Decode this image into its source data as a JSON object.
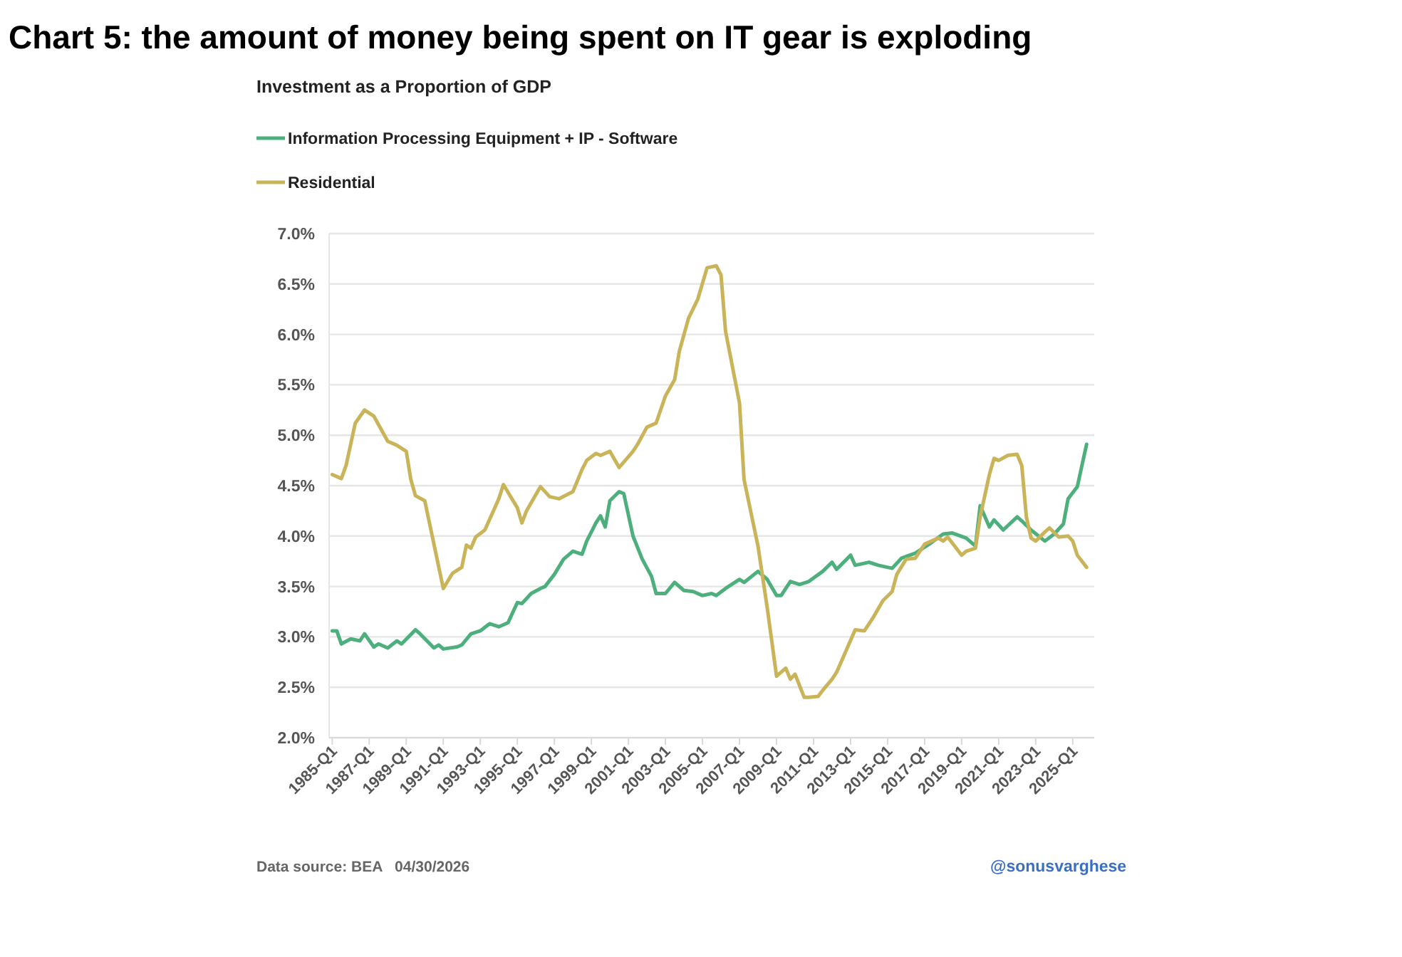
{
  "chart_data": {
    "type": "line",
    "title": "Chart 5: the amount of money being spent on IT gear is exploding",
    "subtitle": "Investment as a Proportion of GDP",
    "xlim": [
      "1984-11",
      "2026-03"
    ],
    "xticks": [
      {
        "value": "1985-01",
        "label": "1985-Q1"
      },
      {
        "value": "1987-01",
        "label": "1987-Q1"
      },
      {
        "value": "1989-01",
        "label": "1989-Q1"
      },
      {
        "value": "1991-01",
        "label": "1991-Q1"
      },
      {
        "value": "1993-01",
        "label": "1993-Q1"
      },
      {
        "value": "1995-01",
        "label": "1995-Q1"
      },
      {
        "value": "1997-01",
        "label": "1997-Q1"
      },
      {
        "value": "1999-01",
        "label": "1999-Q1"
      },
      {
        "value": "2001-01",
        "label": "2001-Q1"
      },
      {
        "value": "2003-01",
        "label": "2003-Q1"
      },
      {
        "value": "2005-01",
        "label": "2005-Q1"
      },
      {
        "value": "2007-01",
        "label": "2007-Q1"
      },
      {
        "value": "2009-01",
        "label": "2009-Q1"
      },
      {
        "value": "2011-01",
        "label": "2011-Q1"
      },
      {
        "value": "2013-01",
        "label": "2013-Q1"
      },
      {
        "value": "2015-01",
        "label": "2015-Q1"
      },
      {
        "value": "2017-01",
        "label": "2017-Q1"
      },
      {
        "value": "2019-01",
        "label": "2019-Q1"
      },
      {
        "value": "2021-01",
        "label": "2021-Q1"
      },
      {
        "value": "2023-01",
        "label": "2023-Q1"
      },
      {
        "value": "2025-01",
        "label": "2025-Q1"
      }
    ],
    "ylim": [
      2,
      7
    ],
    "yticks": [
      {
        "value": 2,
        "label": "2.0%"
      },
      {
        "value": 2.5,
        "label": "2.5%"
      },
      {
        "value": 3,
        "label": "3.0%"
      },
      {
        "value": 3.5,
        "label": "3.5%"
      },
      {
        "value": 4,
        "label": "4.0%"
      },
      {
        "value": 4.5,
        "label": "4.5%"
      },
      {
        "value": 5,
        "label": "5.0%"
      },
      {
        "value": 5.5,
        "label": "5.5%"
      },
      {
        "value": 6,
        "label": "6.0%"
      },
      {
        "value": 6.5,
        "label": "6.5%"
      },
      {
        "value": 7,
        "label": "7.0%"
      }
    ],
    "grid": "y",
    "legend": "top left",
    "series": [
      {
        "name": "Information Processing Equipment + IP - Software",
        "color": "#4daf7c",
        "x": [
          "1985-01",
          "1985-04",
          "1985-07",
          "1986-01",
          "1986-07",
          "1986-10",
          "1987-04",
          "1987-07",
          "1988-01",
          "1988-07",
          "1988-10",
          "1989-07",
          "1989-10",
          "1990-07",
          "1990-10",
          "1991-01",
          "1991-10",
          "1992-01",
          "1992-07",
          "1993-01",
          "1993-07",
          "1994-01",
          "1994-07",
          "1995-01",
          "1995-04",
          "1995-10",
          "1996-04",
          "1996-07",
          "1997-01",
          "1997-07",
          "1998-01",
          "1998-07",
          "1998-10",
          "1999-04",
          "1999-07",
          "1999-10",
          "2000-01",
          "2000-07",
          "2000-10",
          "2001-04",
          "2001-10",
          "2002-04",
          "2002-07",
          "2003-01",
          "2003-07",
          "2004-01",
          "2004-07",
          "2005-01",
          "2005-07",
          "2005-10",
          "2006-04",
          "2007-01",
          "2007-04",
          "2008-01",
          "2008-07",
          "2009-01",
          "2009-04",
          "2009-10",
          "2010-04",
          "2010-10",
          "2011-07",
          "2012-01",
          "2012-04",
          "2013-01",
          "2013-04",
          "2014-01",
          "2014-07",
          "2015-04",
          "2015-10",
          "2016-07",
          "2017-04",
          "2018-01",
          "2018-07",
          "2019-04",
          "2019-10",
          "2020-01",
          "2020-07",
          "2020-10",
          "2021-04",
          "2022-01",
          "2022-04",
          "2022-10",
          "2023-07",
          "2024-01",
          "2024-07",
          "2024-10",
          "2025-04",
          "2025-07",
          "2025-10"
        ],
        "values": [
          3.06,
          3.06,
          2.93,
          2.98,
          2.96,
          3.03,
          2.9,
          2.93,
          2.89,
          2.96,
          2.93,
          3.07,
          3.03,
          2.89,
          2.92,
          2.88,
          2.9,
          2.92,
          3.03,
          3.06,
          3.13,
          3.1,
          3.14,
          3.34,
          3.33,
          3.43,
          3.48,
          3.5,
          3.62,
          3.77,
          3.85,
          3.82,
          3.95,
          4.13,
          4.2,
          4.09,
          4.35,
          4.44,
          4.42,
          4.0,
          3.77,
          3.6,
          3.43,
          3.43,
          3.54,
          3.46,
          3.45,
          3.41,
          3.43,
          3.41,
          3.48,
          3.57,
          3.54,
          3.65,
          3.57,
          3.41,
          3.41,
          3.55,
          3.52,
          3.55,
          3.65,
          3.74,
          3.67,
          3.81,
          3.71,
          3.74,
          3.71,
          3.68,
          3.78,
          3.83,
          3.92,
          4.02,
          4.03,
          3.98,
          3.9,
          4.3,
          4.09,
          4.16,
          4.06,
          4.19,
          4.15,
          4.06,
          3.95,
          4.02,
          4.12,
          4.37,
          4.49,
          4.7,
          4.91
        ]
      },
      {
        "name": "Residential",
        "color": "#c9b45a",
        "x": [
          "1985-01",
          "1985-07",
          "1985-10",
          "1986-04",
          "1986-10",
          "1987-04",
          "1988-01",
          "1988-07",
          "1989-01",
          "1989-04",
          "1989-07",
          "1990-01",
          "1991-01",
          "1991-07",
          "1992-01",
          "1992-04",
          "1992-07",
          "1992-10",
          "1993-04",
          "1994-01",
          "1994-04",
          "1995-01",
          "1995-04",
          "1995-07",
          "1996-04",
          "1996-10",
          "1997-04",
          "1998-01",
          "1998-07",
          "1998-10",
          "1999-04",
          "1999-07",
          "2000-01",
          "2000-07",
          "2001-04",
          "2001-07",
          "2002-01",
          "2002-07",
          "2003-01",
          "2003-07",
          "2003-10",
          "2004-04",
          "2004-10",
          "2005-04",
          "2005-10",
          "2006-01",
          "2006-04",
          "2007-01",
          "2007-04",
          "2008-01",
          "2008-07",
          "2009-01",
          "2009-07",
          "2009-10",
          "2010-01",
          "2010-07",
          "2010-10",
          "2011-04",
          "2011-07",
          "2012-01",
          "2012-04",
          "2012-10",
          "2013-04",
          "2013-10",
          "2014-04",
          "2014-10",
          "2015-04",
          "2015-07",
          "2016-01",
          "2016-07",
          "2017-01",
          "2017-10",
          "2018-01",
          "2018-04",
          "2019-01",
          "2019-04",
          "2019-10",
          "2020-01",
          "2020-07",
          "2020-10",
          "2021-01",
          "2021-07",
          "2022-01",
          "2022-04",
          "2022-07",
          "2022-10",
          "2023-01",
          "2023-07",
          "2023-10",
          "2024-04",
          "2024-10",
          "2025-01",
          "2025-04",
          "2025-10"
        ],
        "values": [
          4.61,
          4.57,
          4.7,
          5.12,
          5.25,
          5.19,
          4.94,
          4.9,
          4.84,
          4.56,
          4.4,
          4.35,
          3.48,
          3.63,
          3.69,
          3.91,
          3.88,
          3.99,
          4.06,
          4.37,
          4.51,
          4.28,
          4.13,
          4.25,
          4.49,
          4.39,
          4.37,
          4.44,
          4.66,
          4.75,
          4.82,
          4.8,
          4.84,
          4.68,
          4.84,
          4.91,
          5.08,
          5.12,
          5.39,
          5.55,
          5.83,
          6.16,
          6.35,
          6.66,
          6.68,
          6.59,
          6.03,
          5.32,
          4.56,
          3.9,
          3.29,
          2.61,
          2.69,
          2.58,
          2.63,
          2.4,
          2.4,
          2.41,
          2.47,
          2.58,
          2.65,
          2.86,
          3.07,
          3.06,
          3.2,
          3.36,
          3.45,
          3.62,
          3.77,
          3.78,
          3.92,
          3.98,
          3.95,
          3.99,
          3.81,
          3.85,
          3.88,
          4.19,
          4.61,
          4.77,
          4.75,
          4.8,
          4.81,
          4.7,
          4.19,
          3.98,
          3.95,
          4.04,
          4.08,
          3.99,
          4.0,
          3.95,
          3.81,
          3.69
        ]
      }
    ],
    "annotations": [
      "Data source: BEA   04/30/2026",
      "@sonusvarghese"
    ]
  }
}
